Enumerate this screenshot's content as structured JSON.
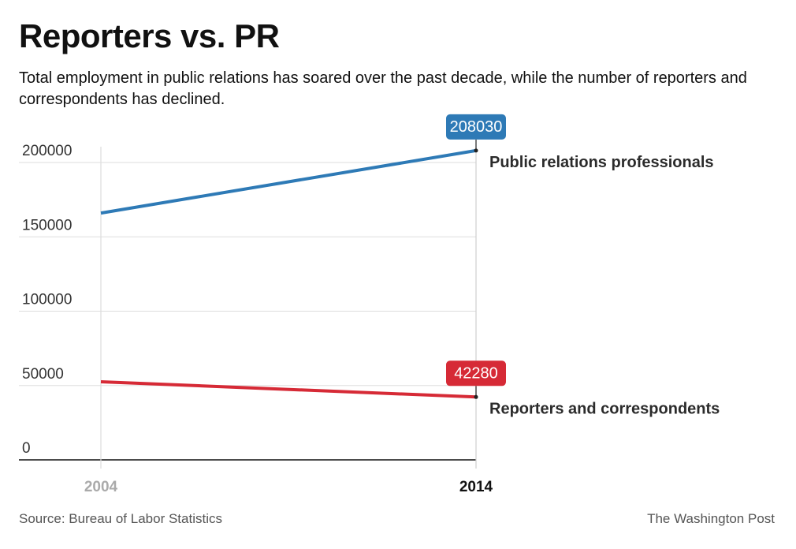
{
  "header": {
    "title": "Reporters vs. PR",
    "subtitle": "Total employment in public relations has soared over the past decade, while the number of reporters and correspondents has declined."
  },
  "chart_data": {
    "type": "line",
    "title": "Reporters vs. PR",
    "categories": [
      "2004",
      "2014"
    ],
    "ylim": [
      0,
      210000
    ],
    "yticks": [
      0,
      50000,
      100000,
      150000,
      200000
    ],
    "grid": true,
    "series": [
      {
        "name": "Public relations professionals",
        "color": "#2e7ab6",
        "values": [
          166000,
          208030
        ],
        "end_label": "208030"
      },
      {
        "name": "Reporters and correspondents",
        "color": "#d62a36",
        "values": [
          52500,
          42280
        ],
        "end_label": "42280"
      }
    ]
  },
  "footer": {
    "source": "Source: Bureau of Labor Statistics",
    "credit": "The Washington Post"
  },
  "colors": {
    "axis_highlight": "#111111",
    "axis_muted": "#aaaaaa",
    "grid": "#dddddd"
  }
}
